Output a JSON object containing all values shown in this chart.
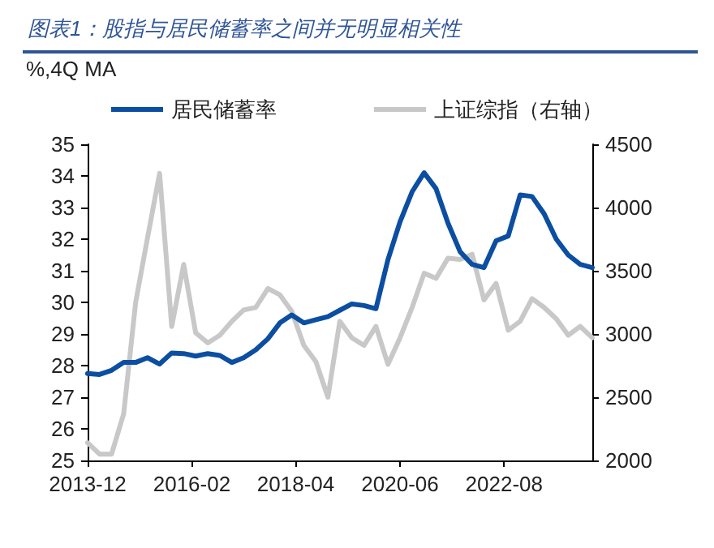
{
  "chart_data": {
    "type": "line",
    "title": "图表1：股指与居民储蓄率之间并无明显相关性",
    "ylabel": "%,4Q MA",
    "x": [
      "2013-12",
      "2014-03",
      "2014-06",
      "2014-09",
      "2014-12",
      "2015-03",
      "2015-06",
      "2015-09",
      "2015-12",
      "2016-03",
      "2016-06",
      "2016-09",
      "2016-12",
      "2017-03",
      "2017-06",
      "2017-09",
      "2017-12",
      "2018-03",
      "2018-06",
      "2018-09",
      "2018-12",
      "2019-03",
      "2019-06",
      "2019-09",
      "2019-12",
      "2020-03",
      "2020-06",
      "2020-09",
      "2020-12",
      "2021-03",
      "2021-06",
      "2021-09",
      "2021-12",
      "2022-03",
      "2022-06",
      "2022-09",
      "2022-12",
      "2023-03",
      "2023-06",
      "2023-09",
      "2023-12",
      "2024-03",
      "2024-06"
    ],
    "series": [
      {
        "name": "居民储蓄率",
        "color": "#0b4ea2",
        "values": [
          27.75,
          27.72,
          27.85,
          28.1,
          28.1,
          28.25,
          28.05,
          28.4,
          28.38,
          28.3,
          28.38,
          28.32,
          28.1,
          28.25,
          28.5,
          28.85,
          29.35,
          29.6,
          29.35,
          29.45,
          29.55,
          29.75,
          29.95,
          29.9,
          29.8,
          31.35,
          32.55,
          33.5,
          34.1,
          33.6,
          32.5,
          31.6,
          31.2,
          31.1,
          31.95,
          32.1,
          33.4,
          33.35,
          32.8,
          32.0,
          31.5,
          31.2,
          31.1
        ]
      },
      {
        "name": "上证综指（右轴）",
        "color": "#c8c8c8",
        "axis": "y2",
        "values": [
          2140,
          2050,
          2050,
          2370,
          3250,
          3760,
          4270,
          3060,
          3550,
          3010,
          2930,
          2990,
          3100,
          3190,
          3210,
          3360,
          3310,
          3180,
          2910,
          2780,
          2500,
          3100,
          2970,
          2910,
          3060,
          2760,
          2970,
          3210,
          3480,
          3440,
          3600,
          3590,
          3630,
          3270,
          3400,
          3030,
          3100,
          3280,
          3210,
          3120,
          2990,
          3060,
          2970
        ]
      }
    ],
    "xlim": [
      "2013-12",
      "2024-06"
    ],
    "xticks": [
      "2013-12",
      "2016-02",
      "2018-04",
      "2020-06",
      "2022-08"
    ],
    "ylim": [
      25,
      35
    ],
    "yticks": [
      25,
      26,
      27,
      28,
      29,
      30,
      31,
      32,
      33,
      34,
      35
    ],
    "y2lim": [
      2000,
      4500
    ],
    "y2ticks": [
      2000,
      2500,
      3000,
      3500,
      4000,
      4500
    ],
    "grid": false,
    "legend": "top",
    "marker": "none",
    "line_style": "solid"
  }
}
